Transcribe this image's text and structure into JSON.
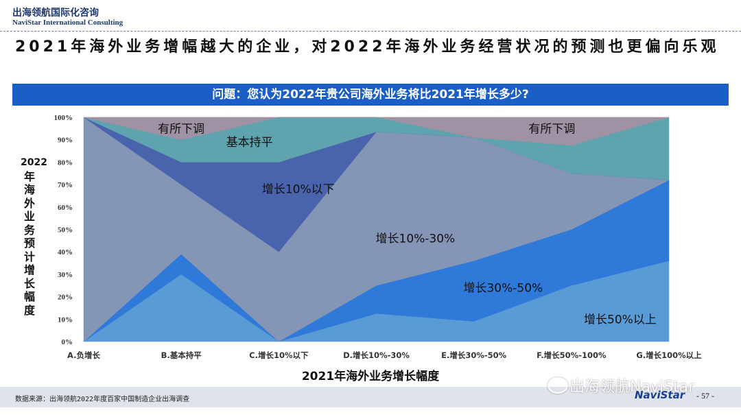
{
  "header": {
    "brand_cn": "出海领航国际化咨询",
    "brand_en": "NaviStar International Consulting",
    "headline": "2021年海外业务增幅越大的企业，对2022年海外业务经营状况的预测也更偏向乐观"
  },
  "question": "问题：您认为2022年贵公司海外业务将比2021年增长多少?",
  "chart_data": {
    "type": "area",
    "stacked": true,
    "normalized": true,
    "categories": [
      "A.负增长",
      "B.基本持平",
      "C.增长10%以下",
      "D.增长10%-30%",
      "E.增长30%-50%",
      "F.增长50%-100%",
      "G.增长100%以上"
    ],
    "series": [
      {
        "name": "增长50%以上",
        "color": "#5b9bd5",
        "values": [
          0,
          30,
          0,
          12.5,
          9,
          25,
          36
        ]
      },
      {
        "name": "增长30%-50%",
        "color": "#2f7ad8",
        "values": [
          0,
          9,
          0,
          12.5,
          27,
          25,
          36
        ]
      },
      {
        "name": "增长10%-30%",
        "color": "#8595b5",
        "values": [
          100,
          31,
          40,
          68.5,
          55,
          25,
          0
        ]
      },
      {
        "name": "增长10%以下",
        "color": "#4a63ad",
        "values": [
          0,
          10,
          40,
          0,
          0,
          0,
          0
        ]
      },
      {
        "name": "基本持平",
        "color": "#5ea3ad",
        "values": [
          0,
          10,
          20,
          6.5,
          0,
          12.5,
          28
        ]
      },
      {
        "name": "有所下调",
        "color": "#9e92a4",
        "values": [
          0,
          10,
          0,
          0,
          9,
          12.5,
          0
        ]
      }
    ],
    "area_labels": [
      {
        "text": "有所下调",
        "x": 1.0,
        "y": 95
      },
      {
        "text": "基本持平",
        "x": 1.7,
        "y": 89
      },
      {
        "text": "增长10%以下",
        "x": 2.2,
        "y": 68
      },
      {
        "text": "增长10%-30%",
        "x": 3.4,
        "y": 46
      },
      {
        "text": "增长30%-50%",
        "x": 4.3,
        "y": 24
      },
      {
        "text": "增长50%以上",
        "x": 5.5,
        "y": 10
      },
      {
        "text": "有所下调",
        "x": 4.8,
        "y": 95
      }
    ],
    "xlabel": "2021年海外业务增长幅度",
    "ylabel": "2022年海外业务预计增长幅度",
    "ylim": [
      0,
      100
    ],
    "yticks": [
      "0%",
      "10%",
      "20%",
      "30%",
      "40%",
      "50%",
      "60%",
      "70%",
      "80%",
      "90%",
      "100%"
    ],
    "grid": false,
    "legend": "none"
  },
  "footer": {
    "source": "数据来源：出海领航2022年度百家中国制造企业出海调查",
    "page": "- 57 -",
    "watermark": "出海领航NaviStar",
    "logo": "NaviStar"
  }
}
